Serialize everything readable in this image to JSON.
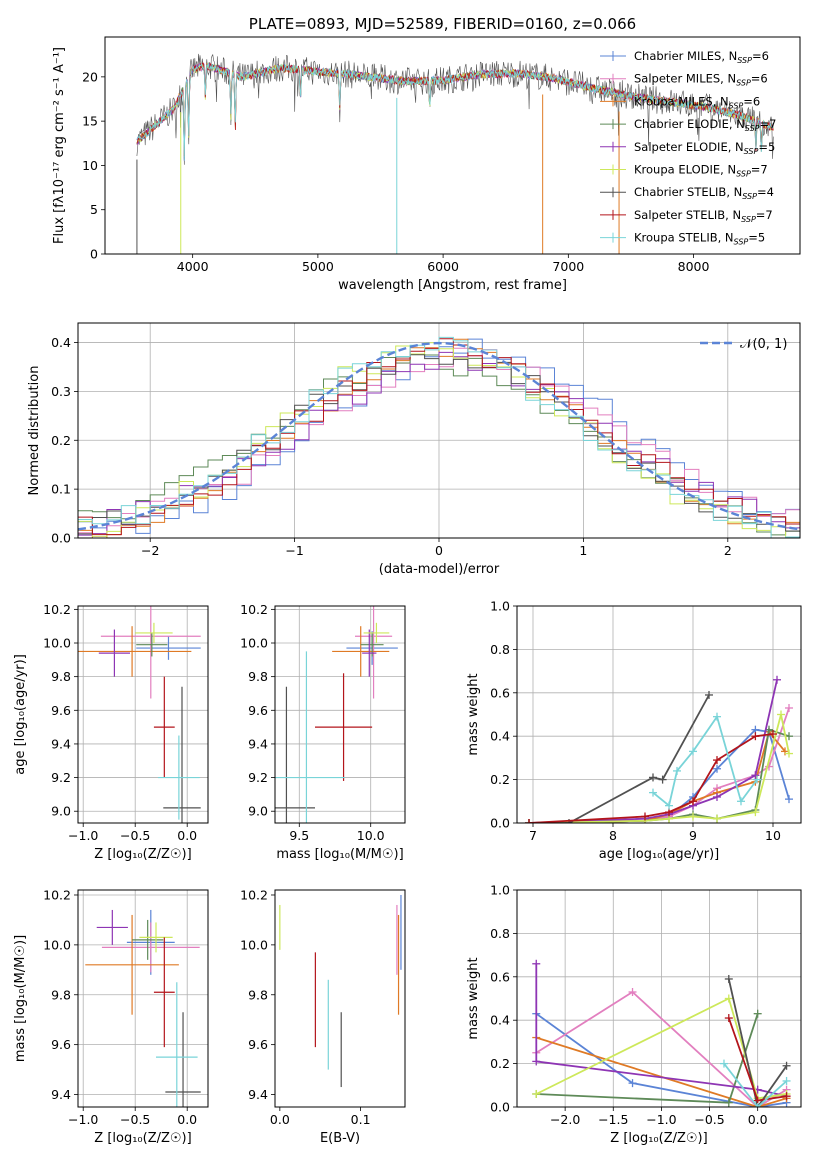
{
  "colors": {
    "series": [
      "#5b84d6",
      "#e27fbf",
      "#df7a25",
      "#5e8a58",
      "#8e35b4",
      "#cde85a",
      "#515151",
      "#b3151b",
      "#79d4d8"
    ]
  },
  "chart_data": [
    {
      "id": "spectrum",
      "type": "line",
      "title": "PLATE=0893, MJD=52589, FIBERID=0160, z=0.066",
      "xlabel": "wavelength [Angstrom, rest frame]",
      "ylabel": "Flux [fλ10⁻¹⁷ erg cm⁻² s⁻¹ A⁻¹]",
      "xlim": [
        3300,
        8850
      ],
      "ylim": [
        0,
        24.5
      ],
      "xticks": [
        "4000",
        "5000",
        "6000",
        "7000",
        "8000"
      ],
      "yticks": [
        "0",
        "5",
        "10",
        "15",
        "20"
      ],
      "legend_position": "upper-right",
      "legend": [
        {
          "label": "Chabrier MILES, N",
          "sub": "SSP",
          "suffix": "=6"
        },
        {
          "label": "Salpeter MILES, N",
          "sub": "SSP",
          "suffix": "=6"
        },
        {
          "label": "Kroupa MILES, N",
          "sub": "SSP",
          "suffix": "=6"
        },
        {
          "label": "Chabrier ELODIE, N",
          "sub": "SSP",
          "suffix": "=7"
        },
        {
          "label": "Salpeter ELODIE, N",
          "sub": "SSP",
          "suffix": "=5"
        },
        {
          "label": "Kroupa ELODIE, N",
          "sub": "SSP",
          "suffix": "=7"
        },
        {
          "label": "Chabrier STELIB, N",
          "sub": "SSP",
          "suffix": "=4"
        },
        {
          "label": "Salpeter STELIB, N",
          "sub": "SSP",
          "suffix": "=7"
        },
        {
          "label": "Kroupa STELIB, N",
          "sub": "SSP",
          "suffix": "=5"
        }
      ],
      "continuum": [
        [
          3550,
          12.6
        ],
        [
          3700,
          14.5
        ],
        [
          3850,
          16.4
        ],
        [
          4000,
          20.8
        ],
        [
          4100,
          21.3
        ],
        [
          4400,
          20.0
        ],
        [
          4700,
          21.0
        ],
        [
          5000,
          20.6
        ],
        [
          5300,
          20.2
        ],
        [
          5700,
          19.5
        ],
        [
          6000,
          19.6
        ],
        [
          6300,
          20.3
        ],
        [
          6600,
          20.4
        ],
        [
          6900,
          19.8
        ],
        [
          7200,
          18.7
        ],
        [
          7500,
          17.8
        ],
        [
          7800,
          17.2
        ],
        [
          8100,
          16.6
        ],
        [
          8400,
          15.5
        ],
        [
          8600,
          14.4
        ]
      ],
      "absorption_dips": [
        [
          3933,
          8.0
        ],
        [
          3968,
          6.5
        ],
        [
          4101,
          3.5
        ],
        [
          4305,
          5.0
        ],
        [
          4340,
          6.0
        ],
        [
          4861,
          3.0
        ],
        [
          5175,
          4.0
        ],
        [
          5893,
          3.0
        ],
        [
          8498,
          3.0
        ],
        [
          8542,
          3.0
        ],
        [
          8662,
          3.0
        ]
      ],
      "outliers": [
        [
          3555,
          0
        ],
        [
          3905,
          0
        ],
        [
          5630,
          0
        ],
        [
          6795,
          0
        ],
        [
          7405,
          0
        ]
      ],
      "grid": false
    },
    {
      "id": "residuals",
      "type": "histogram",
      "xlabel": "(data-model)/error",
      "ylabel": "Normed distribution",
      "xlim": [
        -2.5,
        2.5
      ],
      "ylim": [
        0,
        0.44
      ],
      "xticks": [
        "−2",
        "−1",
        "0",
        "1",
        "2"
      ],
      "yticks": [
        "0.0",
        "0.1",
        "0.2",
        "0.3",
        "0.4"
      ],
      "legend_position": "upper-right",
      "legend": [
        {
          "label": "𝒩(0, 1)"
        }
      ],
      "bin_width": 0.1,
      "grid": true
    },
    {
      "id": "age-vs-Z",
      "type": "errorbar",
      "xlabel": "Z [log₁₀(Z/Z☉)]",
      "ylabel": "age  [log₁₀(age/yr)]",
      "xlim": [
        -1.05,
        0.2
      ],
      "ylim": [
        8.93,
        10.22
      ],
      "xticks": [
        "−1.0",
        "−0.5",
        "0.0"
      ],
      "yticks": [
        "9.0",
        "9.2",
        "9.4",
        "9.6",
        "9.8",
        "10.0",
        "10.2"
      ],
      "points": [
        {
          "s": 0,
          "x": -0.18,
          "y": 9.97,
          "xerr": 0.31,
          "yerr": 0.07
        },
        {
          "s": 1,
          "x": -0.35,
          "y": 10.04,
          "xerr": 0.48,
          "yerr": 0.37
        },
        {
          "s": 2,
          "x": -0.53,
          "y": 9.95,
          "xerr": 0.57,
          "yerr": 0.15
        },
        {
          "s": 3,
          "x": -0.34,
          "y": 9.99,
          "xerr": 0.15,
          "yerr": 0.07
        },
        {
          "s": 4,
          "x": -0.7,
          "y": 9.94,
          "xerr": 0.15,
          "yerr": 0.14
        },
        {
          "s": 5,
          "x": -0.32,
          "y": 10.06,
          "xerr": 0.18,
          "yerr": 0.06
        },
        {
          "s": 6,
          "x": -0.05,
          "y": 9.02,
          "xerr": 0.18,
          "yerr": 0.72
        },
        {
          "s": 7,
          "x": -0.22,
          "y": 9.5,
          "xerr": 0.1,
          "yerr": 0.3
        },
        {
          "s": 8,
          "x": -0.08,
          "y": 9.2,
          "xerr": 0.2,
          "yerr": 0.25
        }
      ],
      "grid": true
    },
    {
      "id": "age-vs-mass",
      "type": "errorbar",
      "xlabel": "mass [log₁₀(M/M☉)]",
      "xlim": [
        9.33,
        10.24
      ],
      "ylim": [
        8.93,
        10.22
      ],
      "xticks": [
        "9.5",
        "10.0"
      ],
      "yticks": [
        "9.0",
        "9.2",
        "9.4",
        "9.6",
        "9.8",
        "10.0",
        "10.2"
      ],
      "points": [
        {
          "s": 0,
          "x": 10.01,
          "y": 9.97,
          "xerr": 0.18,
          "yerr": 0.1
        },
        {
          "s": 1,
          "x": 10.02,
          "y": 10.04,
          "xerr": 0.13,
          "yerr": 0.37
        },
        {
          "s": 2,
          "x": 9.93,
          "y": 9.95,
          "xerr": 0.2,
          "yerr": 0.15
        },
        {
          "s": 3,
          "x": 10.01,
          "y": 9.99,
          "xerr": 0.08,
          "yerr": 0.07
        },
        {
          "s": 4,
          "x": 9.99,
          "y": 9.94,
          "xerr": 0.05,
          "yerr": 0.14
        },
        {
          "s": 5,
          "x": 10.04,
          "y": 10.06,
          "xerr": 0.09,
          "yerr": 0.06
        },
        {
          "s": 6,
          "x": 9.41,
          "y": 9.02,
          "xerr": 0.2,
          "yerr": 0.72
        },
        {
          "s": 7,
          "x": 9.81,
          "y": 9.5,
          "xerr": 0.2,
          "yerr": 0.32
        },
        {
          "s": 8,
          "x": 9.55,
          "y": 9.2,
          "xerr": 0.27,
          "yerr": 0.75
        }
      ],
      "grid": true
    },
    {
      "id": "weight-vs-age",
      "type": "line",
      "xlabel": "age  [log₁₀(age/yr)]",
      "ylabel": "mass weight",
      "xlim": [
        6.8,
        10.35
      ],
      "ylim": [
        0,
        1
      ],
      "xticks": [
        "7",
        "8",
        "9",
        "10"
      ],
      "yticks": [
        "0.0",
        "0.2",
        "0.4",
        "0.6",
        "0.8",
        "1.0"
      ],
      "series": [
        {
          "s": 0,
          "x": [
            6.95,
            8.4,
            8.7,
            9.0,
            9.3,
            9.78,
            9.95,
            10.2
          ],
          "y": [
            0.0,
            0.01,
            0.03,
            0.12,
            0.25,
            0.43,
            0.42,
            0.11
          ]
        },
        {
          "s": 1,
          "x": [
            6.95,
            8.4,
            8.7,
            9.0,
            9.3,
            9.78,
            9.95,
            10.2
          ],
          "y": [
            0.0,
            0.01,
            0.03,
            0.08,
            0.16,
            0.22,
            0.26,
            0.53
          ]
        },
        {
          "s": 2,
          "x": [
            6.95,
            8.4,
            8.7,
            9.0,
            9.3,
            9.78,
            9.95,
            10.15
          ],
          "y": [
            0.0,
            0.01,
            0.04,
            0.1,
            0.14,
            0.19,
            0.42,
            0.33
          ]
        },
        {
          "s": 3,
          "x": [
            6.95,
            8.4,
            8.7,
            9.0,
            9.3,
            9.78,
            9.95,
            10.2
          ],
          "y": [
            0.0,
            0.01,
            0.02,
            0.04,
            0.02,
            0.06,
            0.43,
            0.4
          ]
        },
        {
          "s": 4,
          "x": [
            6.95,
            8.4,
            8.7,
            9.0,
            9.3,
            9.78,
            10.05
          ],
          "y": [
            0.0,
            0.02,
            0.04,
            0.08,
            0.12,
            0.22,
            0.66
          ]
        },
        {
          "s": 5,
          "x": [
            6.95,
            8.4,
            8.7,
            9.0,
            9.3,
            9.78,
            10.1,
            10.2
          ],
          "y": [
            0.0,
            0.01,
            0.02,
            0.03,
            0.02,
            0.05,
            0.5,
            0.32
          ]
        },
        {
          "s": 6,
          "x": [
            6.95,
            7.45,
            8.5,
            8.62,
            9.2
          ],
          "y": [
            0.0,
            0.0,
            0.21,
            0.2,
            0.59
          ]
        },
        {
          "s": 7,
          "x": [
            6.95,
            8.4,
            8.7,
            9.0,
            9.3,
            9.78,
            10.0
          ],
          "y": [
            0.0,
            0.03,
            0.05,
            0.1,
            0.29,
            0.4,
            0.41
          ]
        },
        {
          "s": 8,
          "x": [
            8.5,
            8.7,
            8.8,
            9.0,
            9.3,
            9.6,
            9.8
          ],
          "y": [
            0.14,
            0.08,
            0.24,
            0.33,
            0.49,
            0.1,
            0.2
          ]
        }
      ],
      "grid": true
    },
    {
      "id": "mass-vs-Z",
      "type": "errorbar",
      "xlabel": "Z [log₁₀(Z/Z☉)]",
      "ylabel": "mass [log₁₀(M/M☉)]",
      "xlim": [
        -1.05,
        0.2
      ],
      "ylim": [
        9.35,
        10.22
      ],
      "xticks": [
        "−1.0",
        "−0.5",
        "0.0"
      ],
      "yticks": [
        "9.4",
        "9.6",
        "9.8",
        "10.0",
        "10.2"
      ],
      "points": [
        {
          "s": 0,
          "x": -0.35,
          "y": 10.01,
          "xerr": 0.23,
          "yerr": 0.13
        },
        {
          "s": 1,
          "x": -0.35,
          "y": 9.99,
          "xerr": 0.47,
          "yerr": 0.1
        },
        {
          "s": 2,
          "x": -0.53,
          "y": 9.92,
          "xerr": 0.45,
          "yerr": 0.2
        },
        {
          "s": 3,
          "x": -0.38,
          "y": 10.02,
          "xerr": 0.15,
          "yerr": 0.08
        },
        {
          "s": 4,
          "x": -0.72,
          "y": 10.07,
          "xerr": 0.15,
          "yerr": 0.07
        },
        {
          "s": 5,
          "x": -0.3,
          "y": 10.03,
          "xerr": 0.16,
          "yerr": 0.06
        },
        {
          "s": 6,
          "x": -0.04,
          "y": 9.41,
          "xerr": 0.17,
          "yerr": 0.32
        },
        {
          "s": 7,
          "x": -0.22,
          "y": 9.81,
          "xerr": 0.1,
          "yerr": 0.22
        },
        {
          "s": 8,
          "x": -0.1,
          "y": 9.55,
          "xerr": 0.2,
          "yerr": 0.3
        }
      ],
      "grid": true
    },
    {
      "id": "mass-vs-ebv",
      "type": "errorbar",
      "xlabel": "E(B-V)",
      "xlim": [
        -0.006,
        0.155
      ],
      "ylim": [
        9.35,
        10.22
      ],
      "xticks": [
        "0.0",
        "0.1"
      ],
      "yticks": [
        "9.4",
        "9.6",
        "9.8",
        "10.0",
        "10.2"
      ],
      "points": [
        {
          "s": 0,
          "x": 0.15,
          "y": 10.05,
          "xerr": 0.0,
          "yerr": 0.15
        },
        {
          "s": 1,
          "x": 0.145,
          "y": 10.02,
          "xerr": 0.0,
          "yerr": 0.14
        },
        {
          "s": 2,
          "x": 0.147,
          "y": 9.92,
          "xerr": 0.0,
          "yerr": 0.2
        },
        {
          "s": 5,
          "x": 0.0,
          "y": 10.07,
          "xerr": 0.0,
          "yerr": 0.09
        },
        {
          "s": 6,
          "x": 0.076,
          "y": 9.58,
          "xerr": 0.0,
          "yerr": 0.15
        },
        {
          "s": 7,
          "x": 0.044,
          "y": 9.78,
          "xerr": 0.0,
          "yerr": 0.19
        },
        {
          "s": 8,
          "x": 0.06,
          "y": 9.68,
          "xerr": 0.0,
          "yerr": 0.18
        }
      ],
      "grid": false
    },
    {
      "id": "weight-vs-Z",
      "type": "line",
      "xlabel": "Z [log₁₀(Z/Z☉)]",
      "ylabel": "mass weight",
      "xlim": [
        -2.5,
        0.45
      ],
      "ylim": [
        0,
        1
      ],
      "xticks": [
        "−2.0",
        "−1.5",
        "−1.0",
        "−0.5",
        "0.0"
      ],
      "yticks": [
        "0.0",
        "0.2",
        "0.4",
        "0.6",
        "0.8",
        "1.0"
      ],
      "series": [
        {
          "s": 0,
          "x": [
            -2.3,
            -1.3,
            0.0,
            0.3
          ],
          "y": [
            0.43,
            0.11,
            0.0,
            0.02
          ]
        },
        {
          "s": 1,
          "x": [
            -2.3,
            -1.3,
            0.0,
            0.3
          ],
          "y": [
            0.25,
            0.53,
            0.0,
            0.08
          ]
        },
        {
          "s": 2,
          "x": [
            -2.3,
            0.0,
            0.3
          ],
          "y": [
            0.32,
            0.0,
            0.04
          ]
        },
        {
          "s": 3,
          "x": [
            -2.3,
            -0.3,
            0.0
          ],
          "y": [
            0.06,
            0.02,
            0.43
          ]
        },
        {
          "s": 4,
          "x": [
            -2.3,
            -2.3,
            0.0,
            0.3
          ],
          "y": [
            0.66,
            0.21,
            0.08,
            0.05
          ]
        },
        {
          "s": 5,
          "x": [
            -2.3,
            -0.3,
            0.0,
            0.3
          ],
          "y": [
            0.06,
            0.5,
            0.04,
            0.06
          ]
        },
        {
          "s": 6,
          "x": [
            -0.3,
            0.0,
            0.3
          ],
          "y": [
            0.59,
            0.0,
            0.19
          ]
        },
        {
          "s": 7,
          "x": [
            -0.3,
            0.0,
            0.3
          ],
          "y": [
            0.41,
            0.03,
            0.05
          ]
        },
        {
          "s": 8,
          "x": [
            -0.35,
            0.0,
            0.3
          ],
          "y": [
            0.2,
            0.0,
            0.12
          ]
        }
      ],
      "grid": true
    }
  ]
}
